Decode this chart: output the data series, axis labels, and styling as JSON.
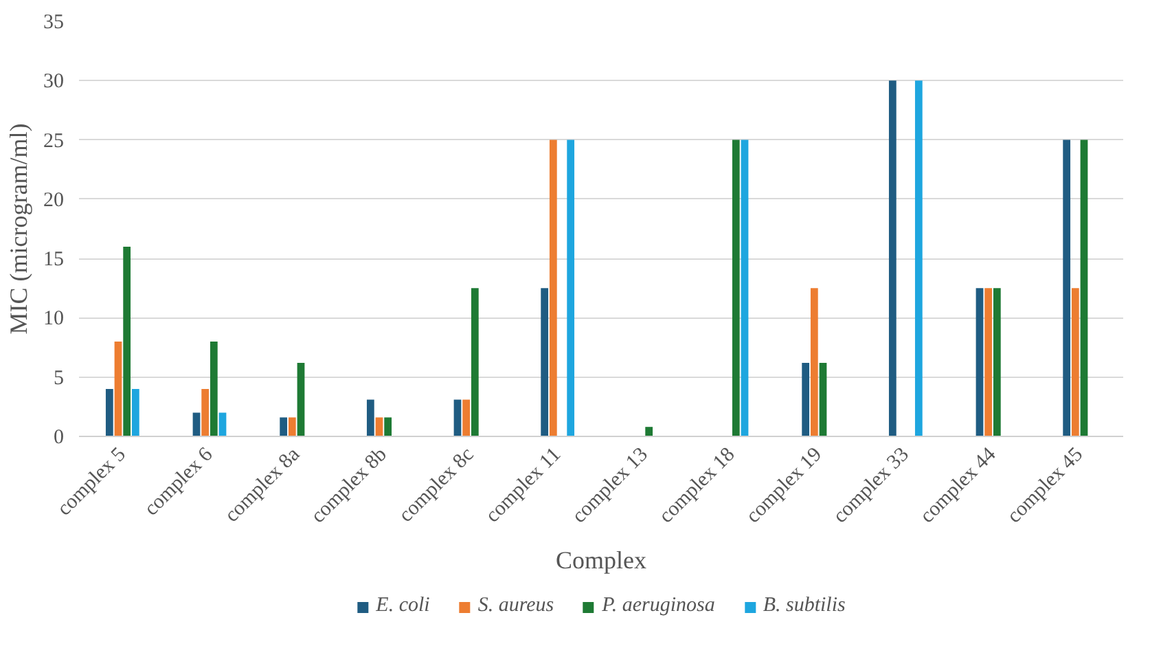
{
  "chart_data": {
    "type": "bar",
    "xlabel": "Complex",
    "ylabel": "MIC (microgram/ml)",
    "categories": [
      "complex 5",
      "complex 6",
      "complex 8a",
      "complex 8b",
      "complex 8c",
      "complex 11",
      "complex 13",
      "complex 18",
      "complex 19",
      "complex 33",
      "complex 44",
      "complex 45"
    ],
    "series": [
      {
        "name": "E. coli",
        "color": "#1f5c82",
        "values": [
          4,
          2,
          1.6,
          3.1,
          3.1,
          12.5,
          null,
          null,
          6.2,
          30,
          12.5,
          25
        ]
      },
      {
        "name": "S. aureus",
        "color": "#ed7d31",
        "values": [
          8,
          4,
          1.6,
          1.6,
          3.1,
          25,
          null,
          null,
          12.5,
          null,
          12.5,
          12.5
        ]
      },
      {
        "name": "P. aeruginosa",
        "color": "#1e7a34",
        "values": [
          16,
          8,
          6.2,
          1.6,
          12.5,
          null,
          0.8,
          25,
          6.2,
          null,
          12.5,
          25
        ]
      },
      {
        "name": "B. subtilis",
        "color": "#1ea6df",
        "values": [
          4,
          2,
          null,
          null,
          null,
          25,
          null,
          25,
          null,
          30,
          null,
          null
        ]
      }
    ],
    "ylim": [
      0,
      35
    ],
    "yticks": [
      0,
      5,
      10,
      15,
      20,
      25,
      30,
      35
    ],
    "grid": "y",
    "legend": "bottom"
  }
}
